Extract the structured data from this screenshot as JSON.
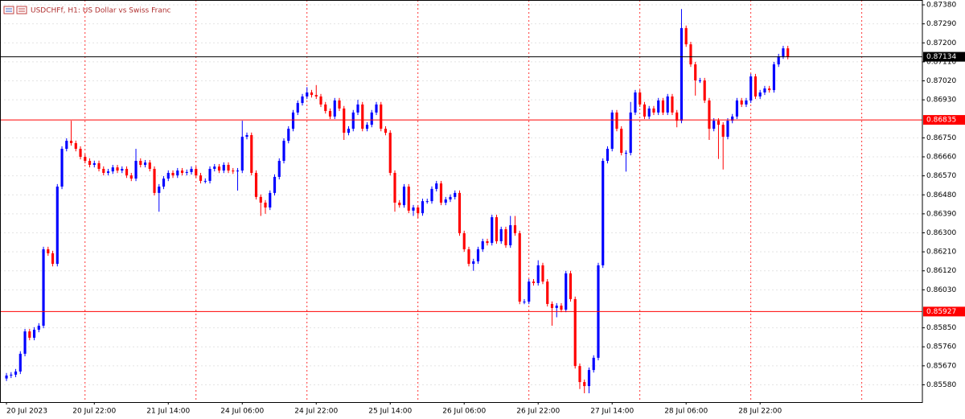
{
  "chart_data": {
    "type": "candlestick",
    "title": "USDCHFf, H1:  US Dollar vs Swiss Franc",
    "up_color": "#0000ff",
    "down_color": "#ff0000",
    "grid": true,
    "ylim": [
      0.85498,
      0.87403
    ],
    "xlim": [
      -1.4,
      198.1
    ],
    "yticks": [
      {
        "value": 0.8738,
        "label": "0.87380"
      },
      {
        "value": 0.8729,
        "label": "0.87290"
      },
      {
        "value": 0.872,
        "label": "0.87200"
      },
      {
        "value": 0.8711,
        "label": "0.87110"
      },
      {
        "value": 0.8702,
        "label": "0.87020"
      },
      {
        "value": 0.8693,
        "label": "0.86930"
      },
      {
        "value": 0.8675,
        "label": "0.86750"
      },
      {
        "value": 0.8666,
        "label": "0.86660"
      },
      {
        "value": 0.8657,
        "label": "0.86570"
      },
      {
        "value": 0.8648,
        "label": "0.86480"
      },
      {
        "value": 0.8639,
        "label": "0.86390"
      },
      {
        "value": 0.863,
        "label": "0.86300"
      },
      {
        "value": 0.8621,
        "label": "0.86210"
      },
      {
        "value": 0.8612,
        "label": "0.86120"
      },
      {
        "value": 0.8603,
        "label": "0.86030"
      },
      {
        "value": 0.8585,
        "label": "0.85850"
      },
      {
        "value": 0.8576,
        "label": "0.85760"
      },
      {
        "value": 0.8567,
        "label": "0.85670"
      },
      {
        "value": 0.8558,
        "label": "0.85580"
      }
    ],
    "xticks": [
      {
        "value": 0,
        "label": "20 Jul 2023"
      },
      {
        "value": 19,
        "label": "20 Jul 22:00"
      },
      {
        "value": 35,
        "label": "21 Jul 14:00"
      },
      {
        "value": 51,
        "label": "24 Jul 06:00"
      },
      {
        "value": 67,
        "label": "24 Jul 22:00"
      },
      {
        "value": 83,
        "label": "25 Jul 14:00"
      },
      {
        "value": 99,
        "label": "26 Jul 06:00"
      },
      {
        "value": 115,
        "label": "26 Jul 22:00"
      },
      {
        "value": 131,
        "label": "27 Jul 14:00"
      },
      {
        "value": 147,
        "label": "28 Jul 06:00"
      },
      {
        "value": 163,
        "label": "28 Jul 22:00"
      }
    ],
    "separators": [
      17,
      41,
      65,
      89,
      113,
      137,
      161,
      185
    ],
    "price_lines": [
      {
        "value": 0.87134,
        "color": "#000000"
      },
      {
        "value": 0.86835,
        "color": "#ff0000"
      },
      {
        "value": 0.85927,
        "color": "#ff0000"
      }
    ],
    "candles": [
      [
        0.8561,
        0.85636,
        0.85598,
        0.85624
      ],
      [
        0.85624,
        0.8564,
        0.85612,
        0.85628
      ],
      [
        0.85628,
        0.85655,
        0.85616,
        0.85643
      ],
      [
        0.85643,
        0.85739,
        0.85631,
        0.85727
      ],
      [
        0.85727,
        0.85845,
        0.85715,
        0.85833
      ],
      [
        0.85833,
        0.85845,
        0.85791,
        0.85803
      ],
      [
        0.85803,
        0.85853,
        0.85791,
        0.85841
      ],
      [
        0.85841,
        0.85872,
        0.85829,
        0.8586
      ],
      [
        0.8586,
        0.86234,
        0.85848,
        0.86222
      ],
      [
        0.86222,
        0.86234,
        0.86191,
        0.86203
      ],
      [
        0.86203,
        0.86215,
        0.86141,
        0.86153
      ],
      [
        0.86153,
        0.86531,
        0.86141,
        0.86519
      ],
      [
        0.86519,
        0.8671,
        0.86507,
        0.86698
      ],
      [
        0.86698,
        0.86748,
        0.86686,
        0.86736
      ],
      [
        0.86736,
        0.86831,
        0.86713,
        0.86725
      ],
      [
        0.86725,
        0.86737,
        0.86686,
        0.86698
      ],
      [
        0.86698,
        0.8671,
        0.86648,
        0.8666
      ],
      [
        0.8666,
        0.86672,
        0.86629,
        0.86641
      ],
      [
        0.86641,
        0.86653,
        0.8661,
        0.86622
      ],
      [
        0.86622,
        0.86642,
        0.8661,
        0.8663
      ],
      [
        0.8663,
        0.86642,
        0.86591,
        0.86603
      ],
      [
        0.86603,
        0.86615,
        0.86572,
        0.86584
      ],
      [
        0.86584,
        0.86603,
        0.86572,
        0.86591
      ],
      [
        0.86591,
        0.86622,
        0.86579,
        0.8661
      ],
      [
        0.8661,
        0.86622,
        0.86583,
        0.86595
      ],
      [
        0.86595,
        0.86615,
        0.86583,
        0.86603
      ],
      [
        0.86603,
        0.86615,
        0.8656,
        0.86572
      ],
      [
        0.86572,
        0.86584,
        0.86545,
        0.86557
      ],
      [
        0.86557,
        0.86698,
        0.86545,
        0.86641
      ],
      [
        0.86641,
        0.86653,
        0.8661,
        0.86622
      ],
      [
        0.86622,
        0.86645,
        0.8661,
        0.86633
      ],
      [
        0.86633,
        0.86645,
        0.86591,
        0.86603
      ],
      [
        0.86603,
        0.86615,
        0.86477,
        0.86489
      ],
      [
        0.86489,
        0.86531,
        0.864,
        0.86519
      ],
      [
        0.86519,
        0.86569,
        0.86507,
        0.86557
      ],
      [
        0.86557,
        0.86596,
        0.86545,
        0.86584
      ],
      [
        0.86584,
        0.86596,
        0.8656,
        0.86572
      ],
      [
        0.86572,
        0.86607,
        0.8656,
        0.86595
      ],
      [
        0.86595,
        0.86607,
        0.86572,
        0.86584
      ],
      [
        0.86584,
        0.866,
        0.86572,
        0.86588
      ],
      [
        0.86588,
        0.86615,
        0.86576,
        0.86603
      ],
      [
        0.86603,
        0.86615,
        0.8656,
        0.86572
      ],
      [
        0.86572,
        0.86584,
        0.86534,
        0.86546
      ],
      [
        0.86546,
        0.86558,
        0.86534,
        0.86546
      ],
      [
        0.86546,
        0.86615,
        0.86534,
        0.86603
      ],
      [
        0.86603,
        0.86626,
        0.86591,
        0.86614
      ],
      [
        0.86614,
        0.86626,
        0.86583,
        0.86595
      ],
      [
        0.86595,
        0.86634,
        0.86583,
        0.86622
      ],
      [
        0.86622,
        0.86634,
        0.86583,
        0.86595
      ],
      [
        0.86595,
        0.86607,
        0.86579,
        0.86591
      ],
      [
        0.86591,
        0.86607,
        0.865,
        0.86595
      ],
      [
        0.86595,
        0.86831,
        0.86583,
        0.86755
      ],
      [
        0.86755,
        0.86775,
        0.86743,
        0.86763
      ],
      [
        0.86763,
        0.86775,
        0.86572,
        0.86584
      ],
      [
        0.86584,
        0.86596,
        0.86458,
        0.8647
      ],
      [
        0.8647,
        0.86482,
        0.8638,
        0.86443
      ],
      [
        0.86443,
        0.86455,
        0.8639,
        0.8642
      ],
      [
        0.8642,
        0.86501,
        0.86408,
        0.86489
      ],
      [
        0.86489,
        0.86577,
        0.86477,
        0.86565
      ],
      [
        0.86565,
        0.86653,
        0.86553,
        0.86641
      ],
      [
        0.86641,
        0.86748,
        0.86629,
        0.86736
      ],
      [
        0.86736,
        0.86805,
        0.86724,
        0.86793
      ],
      [
        0.86793,
        0.86882,
        0.86781,
        0.8687
      ],
      [
        0.8687,
        0.86927,
        0.86858,
        0.86915
      ],
      [
        0.86915,
        0.86958,
        0.86903,
        0.86946
      ],
      [
        0.86946,
        0.8699,
        0.86934,
        0.86965
      ],
      [
        0.86965,
        0.86977,
        0.86941,
        0.86953
      ],
      [
        0.86953,
        0.87,
        0.86934,
        0.86946
      ],
      [
        0.86946,
        0.86958,
        0.86896,
        0.86908
      ],
      [
        0.86908,
        0.8692,
        0.86865,
        0.86877
      ],
      [
        0.86877,
        0.86889,
        0.86839,
        0.86851
      ],
      [
        0.86851,
        0.86939,
        0.86839,
        0.86927
      ],
      [
        0.86927,
        0.86939,
        0.86877,
        0.86889
      ],
      [
        0.86889,
        0.86901,
        0.8674,
        0.86774
      ],
      [
        0.86774,
        0.86805,
        0.86762,
        0.86793
      ],
      [
        0.86793,
        0.86882,
        0.86781,
        0.8687
      ],
      [
        0.8687,
        0.8693,
        0.86858,
        0.86908
      ],
      [
        0.86908,
        0.8692,
        0.86781,
        0.86793
      ],
      [
        0.86793,
        0.86824,
        0.86781,
        0.86812
      ],
      [
        0.86812,
        0.86882,
        0.868,
        0.8687
      ],
      [
        0.8687,
        0.8692,
        0.86858,
        0.86908
      ],
      [
        0.86908,
        0.8692,
        0.86781,
        0.86793
      ],
      [
        0.86793,
        0.86805,
        0.86762,
        0.86774
      ],
      [
        0.86774,
        0.86786,
        0.86572,
        0.86584
      ],
      [
        0.86584,
        0.86596,
        0.864,
        0.86443
      ],
      [
        0.86443,
        0.86455,
        0.86419,
        0.86431
      ],
      [
        0.86431,
        0.86531,
        0.86419,
        0.86519
      ],
      [
        0.86519,
        0.86531,
        0.86393,
        0.86405
      ],
      [
        0.86405,
        0.86432,
        0.8638,
        0.8642
      ],
      [
        0.8642,
        0.86432,
        0.8637,
        0.86393
      ],
      [
        0.86393,
        0.86462,
        0.86381,
        0.8645
      ],
      [
        0.8645,
        0.86462,
        0.86438,
        0.8645
      ],
      [
        0.8645,
        0.8652,
        0.86438,
        0.86508
      ],
      [
        0.86508,
        0.86546,
        0.86496,
        0.86534
      ],
      [
        0.86534,
        0.86546,
        0.86431,
        0.86443
      ],
      [
        0.86443,
        0.8647,
        0.86431,
        0.86458
      ],
      [
        0.86458,
        0.86482,
        0.86446,
        0.8647
      ],
      [
        0.8647,
        0.86501,
        0.86458,
        0.86489
      ],
      [
        0.86489,
        0.86501,
        0.86286,
        0.86298
      ],
      [
        0.86298,
        0.8631,
        0.8621,
        0.86222
      ],
      [
        0.86222,
        0.86234,
        0.86141,
        0.86153
      ],
      [
        0.86153,
        0.86177,
        0.8612,
        0.86165
      ],
      [
        0.86165,
        0.86234,
        0.86153,
        0.86222
      ],
      [
        0.86222,
        0.86272,
        0.8621,
        0.8626
      ],
      [
        0.8626,
        0.86272,
        0.8624,
        0.86252
      ],
      [
        0.86252,
        0.86386,
        0.8624,
        0.86374
      ],
      [
        0.86374,
        0.86386,
        0.86248,
        0.8626
      ],
      [
        0.8626,
        0.86329,
        0.86248,
        0.86317
      ],
      [
        0.86317,
        0.86329,
        0.86229,
        0.86241
      ],
      [
        0.86241,
        0.8638,
        0.86229,
        0.86336
      ],
      [
        0.86336,
        0.8638,
        0.86286,
        0.86298
      ],
      [
        0.86298,
        0.8631,
        0.85962,
        0.85974
      ],
      [
        0.85974,
        0.85986,
        0.85962,
        0.85974
      ],
      [
        0.85974,
        0.86081,
        0.85962,
        0.86069
      ],
      [
        0.86069,
        0.86081,
        0.8605,
        0.86062
      ],
      [
        0.86062,
        0.8617,
        0.8605,
        0.86146
      ],
      [
        0.86146,
        0.86158,
        0.86057,
        0.86069
      ],
      [
        0.86069,
        0.86081,
        0.85951,
        0.85963
      ],
      [
        0.85963,
        0.85975,
        0.8586,
        0.85944
      ],
      [
        0.85944,
        0.85967,
        0.859,
        0.85955
      ],
      [
        0.85955,
        0.85967,
        0.85924,
        0.85936
      ],
      [
        0.85936,
        0.8612,
        0.85924,
        0.86108
      ],
      [
        0.86108,
        0.8612,
        0.85974,
        0.85986
      ],
      [
        0.85986,
        0.85998,
        0.85657,
        0.85669
      ],
      [
        0.85669,
        0.85681,
        0.8556,
        0.85593
      ],
      [
        0.85593,
        0.85605,
        0.8554,
        0.85574
      ],
      [
        0.85574,
        0.85662,
        0.8554,
        0.8565
      ],
      [
        0.8565,
        0.8572,
        0.85638,
        0.85708
      ],
      [
        0.85708,
        0.86158,
        0.85696,
        0.86146
      ],
      [
        0.86146,
        0.86653,
        0.86134,
        0.86641
      ],
      [
        0.86641,
        0.8671,
        0.86629,
        0.86698
      ],
      [
        0.86698,
        0.86882,
        0.86686,
        0.8687
      ],
      [
        0.8687,
        0.86882,
        0.86781,
        0.86793
      ],
      [
        0.86793,
        0.86805,
        0.86667,
        0.86679
      ],
      [
        0.86679,
        0.86691,
        0.8659,
        0.86679
      ],
      [
        0.86679,
        0.8692,
        0.86667,
        0.8687
      ],
      [
        0.8687,
        0.86977,
        0.86858,
        0.86965
      ],
      [
        0.86965,
        0.86977,
        0.86896,
        0.86908
      ],
      [
        0.86908,
        0.8692,
        0.86839,
        0.86851
      ],
      [
        0.86851,
        0.86901,
        0.86839,
        0.86889
      ],
      [
        0.86889,
        0.86901,
        0.86858,
        0.8687
      ],
      [
        0.8687,
        0.86939,
        0.86858,
        0.86927
      ],
      [
        0.86927,
        0.86939,
        0.86858,
        0.8687
      ],
      [
        0.8687,
        0.86958,
        0.86858,
        0.86946
      ],
      [
        0.86946,
        0.86958,
        0.86858,
        0.8687
      ],
      [
        0.8687,
        0.86882,
        0.868,
        0.86831
      ],
      [
        0.86831,
        0.8736,
        0.86819,
        0.8727
      ],
      [
        0.8727,
        0.87282,
        0.87181,
        0.87193
      ],
      [
        0.87193,
        0.87205,
        0.87086,
        0.87098
      ],
      [
        0.87098,
        0.8711,
        0.8695,
        0.87022
      ],
      [
        0.87022,
        0.87034,
        0.8701,
        0.87022
      ],
      [
        0.87022,
        0.87034,
        0.86915,
        0.86927
      ],
      [
        0.86927,
        0.86939,
        0.8674,
        0.86793
      ],
      [
        0.86793,
        0.86843,
        0.86781,
        0.86831
      ],
      [
        0.86831,
        0.86843,
        0.8665,
        0.86812
      ],
      [
        0.86812,
        0.86824,
        0.866,
        0.86755
      ],
      [
        0.86755,
        0.86843,
        0.86743,
        0.86831
      ],
      [
        0.86831,
        0.86863,
        0.86819,
        0.86851
      ],
      [
        0.86851,
        0.86939,
        0.86839,
        0.86927
      ],
      [
        0.86927,
        0.86939,
        0.86896,
        0.86908
      ],
      [
        0.86908,
        0.86939,
        0.86896,
        0.86927
      ],
      [
        0.86927,
        0.87053,
        0.86915,
        0.87041
      ],
      [
        0.87041,
        0.87053,
        0.86934,
        0.86946
      ],
      [
        0.86946,
        0.86977,
        0.86934,
        0.86965
      ],
      [
        0.86965,
        0.86996,
        0.86953,
        0.86984
      ],
      [
        0.86984,
        0.86996,
        0.86964,
        0.86976
      ],
      [
        0.86976,
        0.8711,
        0.86964,
        0.87098
      ],
      [
        0.87098,
        0.87148,
        0.87086,
        0.87136
      ],
      [
        0.87136,
        0.87186,
        0.87124,
        0.87174
      ],
      [
        0.87174,
        0.87186,
        0.87122,
        0.87134
      ]
    ]
  }
}
